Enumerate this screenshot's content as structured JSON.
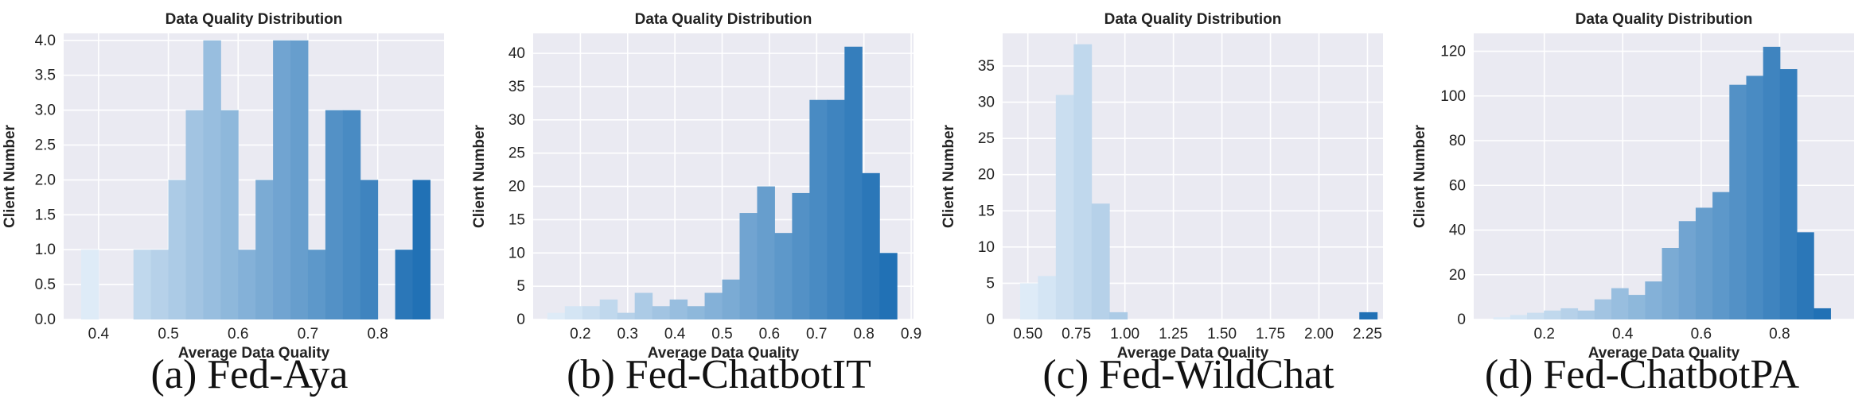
{
  "chart_data": [
    {
      "type": "bar",
      "title": "Data Quality Distribution",
      "xlabel": "Average Data Quality",
      "ylabel": "Client Number",
      "caption": "(a) Fed-Aya",
      "xlim": [
        0.35,
        0.895
      ],
      "ylim": [
        0,
        4.1
      ],
      "xticks": [
        0.4,
        0.5,
        0.6,
        0.7,
        0.8
      ],
      "xtick_labels": [
        "0.4",
        "0.5",
        "0.6",
        "0.7",
        "0.8"
      ],
      "yticks": [
        0.0,
        0.5,
        1.0,
        1.5,
        2.0,
        2.5,
        3.0,
        3.5,
        4.0
      ],
      "ytick_labels": [
        "0.0",
        "0.5",
        "1.0",
        "1.5",
        "2.0",
        "2.5",
        "3.0",
        "3.5",
        "4.0"
      ],
      "bin_start": 0.375,
      "bin_width": 0.025,
      "values": [
        1,
        0,
        0,
        1,
        1,
        2,
        3,
        4,
        3,
        1,
        2,
        4,
        4,
        1,
        3,
        3,
        2,
        0,
        1,
        2
      ]
    },
    {
      "type": "bar",
      "title": "Data Quality Distribution",
      "xlabel": "Average Data Quality",
      "ylabel": "Client Number",
      "caption": "(b) Fed-ChatbotIT",
      "xlim": [
        0.1,
        0.905
      ],
      "ylim": [
        0,
        43
      ],
      "xticks": [
        0.2,
        0.3,
        0.4,
        0.5,
        0.6,
        0.7,
        0.8,
        0.9
      ],
      "xtick_labels": [
        "0.2",
        "0.3",
        "0.4",
        "0.5",
        "0.6",
        "0.7",
        "0.8",
        "0.9"
      ],
      "yticks": [
        0,
        5,
        10,
        15,
        20,
        25,
        30,
        35,
        40
      ],
      "ytick_labels": [
        "0",
        "5",
        "10",
        "15",
        "20",
        "25",
        "30",
        "35",
        "40"
      ],
      "bin_start": 0.13,
      "bin_width": 0.037,
      "values": [
        1,
        2,
        2,
        3,
        1,
        4,
        2,
        3,
        2,
        4,
        6,
        16,
        20,
        13,
        19,
        33,
        33,
        41,
        22,
        10
      ]
    },
    {
      "type": "bar",
      "title": "Data Quality Distribution",
      "xlabel": "Average Data Quality",
      "ylabel": "Client Number",
      "caption": "(c) Fed-WildChat",
      "xlim": [
        0.37,
        2.33
      ],
      "ylim": [
        0,
        39.5
      ],
      "xticks": [
        0.5,
        0.75,
        1.0,
        1.25,
        1.5,
        1.75,
        2.0,
        2.25
      ],
      "xtick_labels": [
        "0.50",
        "0.75",
        "1.00",
        "1.25",
        "1.50",
        "1.75",
        "2.00",
        "2.25"
      ],
      "yticks": [
        0,
        5,
        10,
        15,
        20,
        25,
        30,
        35
      ],
      "ytick_labels": [
        "0",
        "5",
        "10",
        "15",
        "20",
        "25",
        "30",
        "35"
      ],
      "bin_start": 0.46,
      "bin_width": 0.092,
      "values": [
        5,
        6,
        31,
        38,
        16,
        1,
        0,
        0,
        0,
        0,
        0,
        0,
        0,
        0,
        0,
        0,
        0,
        0,
        0,
        1
      ]
    },
    {
      "type": "bar",
      "title": "Data Quality Distribution",
      "xlabel": "Average Data Quality",
      "ylabel": "Client Number",
      "caption": "(d) Fed-ChatbotPA",
      "xlim": [
        0.02,
        0.99
      ],
      "ylim": [
        0,
        128
      ],
      "xticks": [
        0.2,
        0.4,
        0.6,
        0.8
      ],
      "xtick_labels": [
        "0.2",
        "0.4",
        "0.6",
        "0.8"
      ],
      "yticks": [
        0,
        20,
        40,
        60,
        80,
        100,
        120
      ],
      "ytick_labels": [
        "0",
        "20",
        "40",
        "60",
        "80",
        "100",
        "120"
      ],
      "bin_start": 0.07,
      "bin_width": 0.043,
      "values": [
        1,
        2,
        3,
        4,
        5,
        4,
        9,
        14,
        11,
        17,
        32,
        44,
        50,
        57,
        105,
        109,
        122,
        112,
        39,
        5
      ]
    }
  ]
}
